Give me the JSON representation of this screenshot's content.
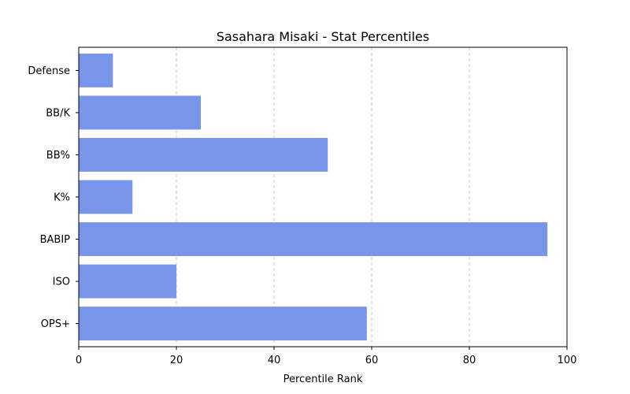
{
  "chart_data": {
    "type": "bar",
    "orientation": "horizontal",
    "title": "Sasahara Misaki - Stat Percentiles",
    "xlabel": "Percentile Rank",
    "ylabel": "",
    "xlim": [
      0,
      100
    ],
    "xticks": [
      "0",
      "20",
      "40",
      "60",
      "80",
      "100"
    ],
    "grid": "x-dashed",
    "bar_color": "#7995e9",
    "categories": [
      "Defense",
      "BB/K",
      "BB%",
      "K%",
      "BABIP",
      "ISO",
      "OPS+"
    ],
    "values": [
      7,
      25,
      51,
      11,
      96,
      20,
      59
    ]
  }
}
